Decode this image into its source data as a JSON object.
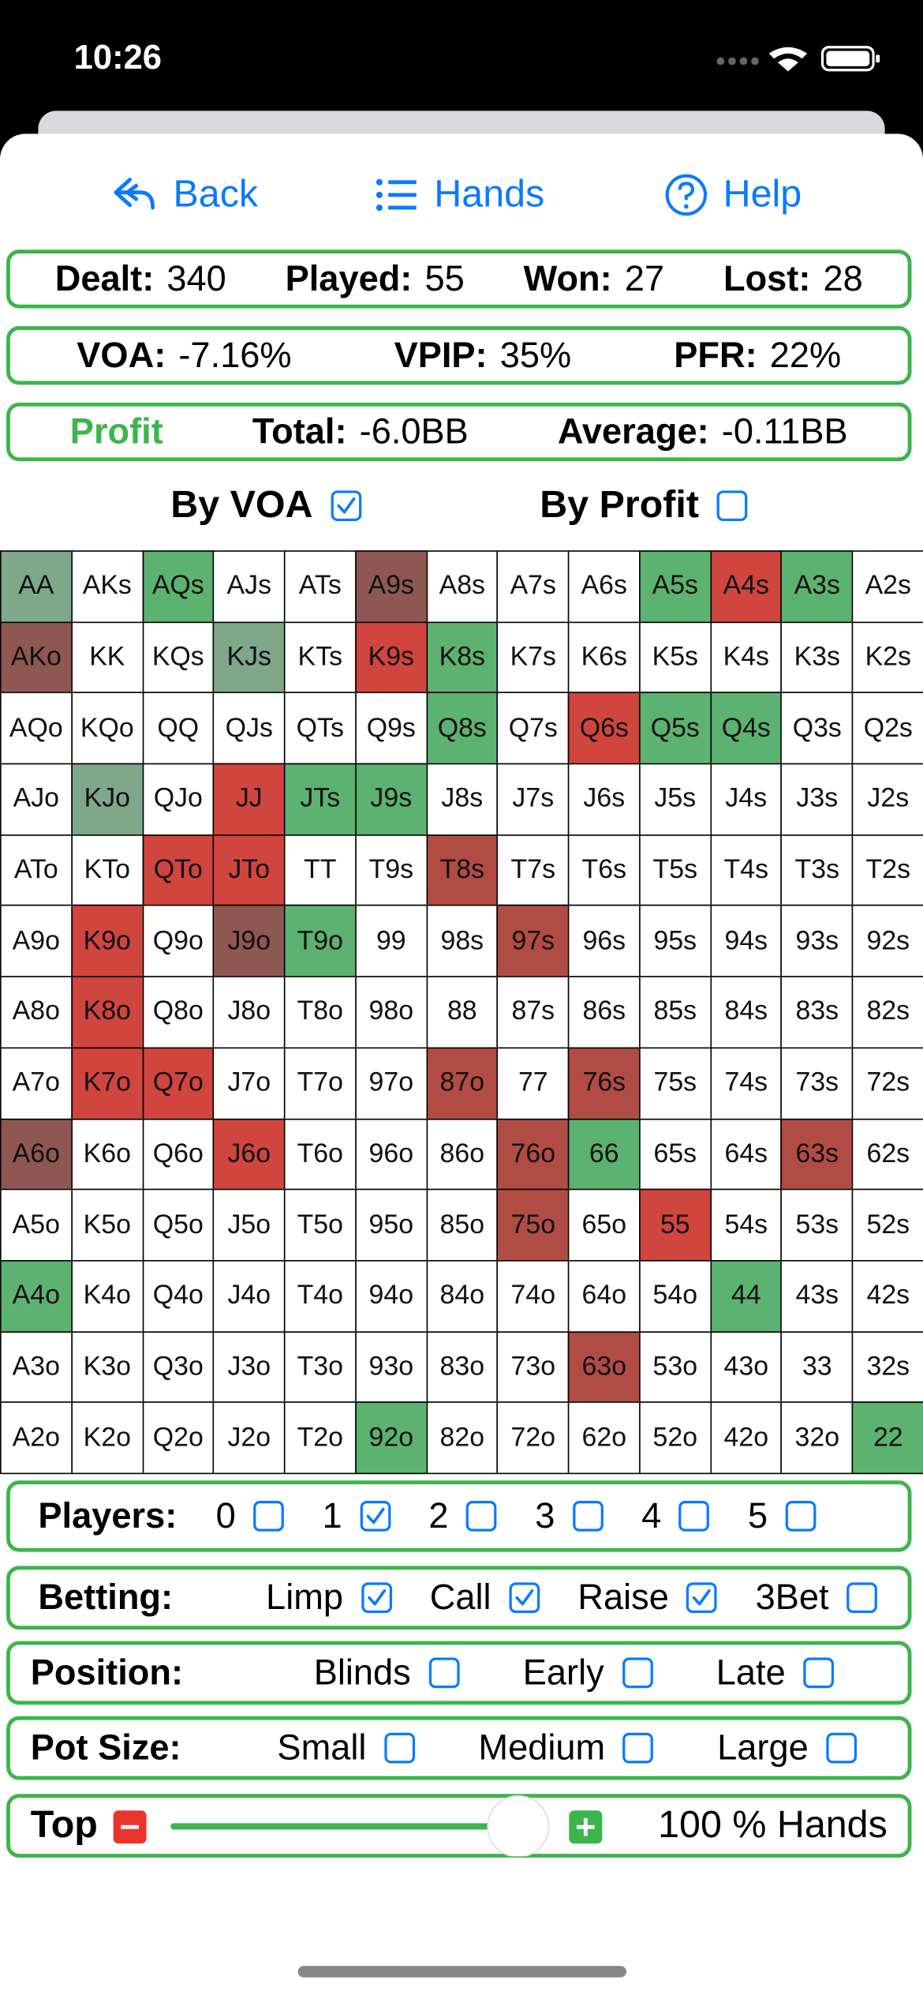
{
  "status": {
    "time": "10:26"
  },
  "nav": [
    "Back",
    "Hands",
    "Help"
  ],
  "stats": [
    [
      {
        "label": "Dealt:",
        "value": "340"
      },
      {
        "label": "Played:",
        "value": "55"
      },
      {
        "label": "Won:",
        "value": "27"
      },
      {
        "label": "Lost:",
        "value": "28"
      }
    ],
    [
      {
        "label": "VOA:",
        "value": "-7.16%"
      },
      {
        "label": "VPIP:",
        "value": "35%"
      },
      {
        "label": "PFR:",
        "value": "22%"
      }
    ],
    [
      {
        "label": "Total:",
        "value": "-6.0BB"
      },
      {
        "label": "Average:",
        "value": "-0.11BB"
      }
    ]
  ],
  "profit_label": "Profit",
  "sort": [
    {
      "label": "By VOA",
      "checked": true
    },
    {
      "label": "By Profit",
      "checked": false
    }
  ],
  "grid": {
    "rows": [
      [
        "AA",
        "AKs",
        "AQs",
        "AJs",
        "ATs",
        "A9s",
        "A8s",
        "A7s",
        "A6s",
        "A5s",
        "A4s",
        "A3s",
        "A2s"
      ],
      [
        "AKo",
        "KK",
        "KQs",
        "KJs",
        "KTs",
        "K9s",
        "K8s",
        "K7s",
        "K6s",
        "K5s",
        "K4s",
        "K3s",
        "K2s"
      ],
      [
        "AQo",
        "KQo",
        "QQ",
        "QJs",
        "QTs",
        "Q9s",
        "Q8s",
        "Q7s",
        "Q6s",
        "Q5s",
        "Q4s",
        "Q3s",
        "Q2s"
      ],
      [
        "AJo",
        "KJo",
        "QJo",
        "JJ",
        "JTs",
        "J9s",
        "J8s",
        "J7s",
        "J6s",
        "J5s",
        "J4s",
        "J3s",
        "J2s"
      ],
      [
        "ATo",
        "KTo",
        "QTo",
        "JTo",
        "TT",
        "T9s",
        "T8s",
        "T7s",
        "T6s",
        "T5s",
        "T4s",
        "T3s",
        "T2s"
      ],
      [
        "A9o",
        "K9o",
        "Q9o",
        "J9o",
        "T9o",
        "99",
        "98s",
        "97s",
        "96s",
        "95s",
        "94s",
        "93s",
        "92s"
      ],
      [
        "A8o",
        "K8o",
        "Q8o",
        "J8o",
        "T8o",
        "98o",
        "88",
        "87s",
        "86s",
        "85s",
        "84s",
        "83s",
        "82s"
      ],
      [
        "A7o",
        "K7o",
        "Q7o",
        "J7o",
        "T7o",
        "97o",
        "87o",
        "77",
        "76s",
        "75s",
        "74s",
        "73s",
        "72s"
      ],
      [
        "A6o",
        "K6o",
        "Q6o",
        "J6o",
        "T6o",
        "96o",
        "86o",
        "76o",
        "66",
        "65s",
        "64s",
        "63s",
        "62s"
      ],
      [
        "A5o",
        "K5o",
        "Q5o",
        "J5o",
        "T5o",
        "95o",
        "85o",
        "75o",
        "65o",
        "55",
        "54s",
        "53s",
        "52s"
      ],
      [
        "A4o",
        "K4o",
        "Q4o",
        "J4o",
        "T4o",
        "94o",
        "84o",
        "74o",
        "64o",
        "54o",
        "44",
        "43s",
        "42s"
      ],
      [
        "A3o",
        "K3o",
        "Q3o",
        "J3o",
        "T3o",
        "93o",
        "83o",
        "73o",
        "63o",
        "53o",
        "43o",
        "33",
        "32s"
      ],
      [
        "A2o",
        "K2o",
        "Q2o",
        "J2o",
        "T2o",
        "92o",
        "82o",
        "72o",
        "62o",
        "52o",
        "42o",
        "32o",
        "22"
      ]
    ],
    "colors": [
      [
        "#7fa88a",
        null,
        "#5cb270",
        null,
        null,
        "#8f5752",
        null,
        null,
        null,
        "#5cb270",
        "#d0453d",
        "#5cb270",
        null
      ],
      [
        "#8f5752",
        null,
        null,
        "#7fa88a",
        null,
        "#d0453d",
        "#5cb270",
        null,
        null,
        null,
        null,
        null,
        null
      ],
      [
        null,
        null,
        null,
        null,
        null,
        null,
        "#5cb270",
        null,
        "#d0453d",
        "#5cb270",
        "#5cb270",
        null,
        null
      ],
      [
        null,
        "#7fa88a",
        null,
        "#d0453d",
        "#5cb270",
        "#5cb270",
        null,
        null,
        null,
        null,
        null,
        null,
        null
      ],
      [
        null,
        null,
        "#d0453d",
        "#d0453d",
        null,
        null,
        "#b14c45",
        null,
        null,
        null,
        null,
        null,
        null
      ],
      [
        null,
        "#d0453d",
        null,
        "#8f5752",
        "#5cb270",
        null,
        null,
        "#b14c45",
        null,
        null,
        null,
        null,
        null
      ],
      [
        null,
        "#d0453d",
        null,
        null,
        null,
        null,
        null,
        null,
        null,
        null,
        null,
        null,
        null
      ],
      [
        null,
        "#d0453d",
        "#d0453d",
        null,
        null,
        null,
        "#b14c45",
        null,
        "#b14c45",
        null,
        null,
        null,
        null
      ],
      [
        "#8f5752",
        null,
        null,
        "#d0453d",
        null,
        null,
        null,
        "#b14c45",
        "#5cb270",
        null,
        null,
        "#b14c45",
        null
      ],
      [
        null,
        null,
        null,
        null,
        null,
        null,
        null,
        "#b14c45",
        null,
        "#d0453d",
        null,
        null,
        null
      ],
      [
        "#5cb270",
        null,
        null,
        null,
        null,
        null,
        null,
        null,
        null,
        null,
        "#5cb270",
        null,
        null
      ],
      [
        null,
        null,
        null,
        null,
        null,
        null,
        null,
        null,
        "#b14c45",
        null,
        null,
        null,
        null
      ],
      [
        null,
        null,
        null,
        null,
        null,
        "#5cb270",
        null,
        null,
        null,
        null,
        null,
        null,
        "#5cb270"
      ]
    ]
  },
  "filters": [
    {
      "label": "Players:",
      "options": [
        {
          "label": "0",
          "checked": false
        },
        {
          "label": "1",
          "checked": true
        },
        {
          "label": "2",
          "checked": false
        },
        {
          "label": "3",
          "checked": false
        },
        {
          "label": "4",
          "checked": false
        },
        {
          "label": "5",
          "checked": false
        }
      ]
    },
    {
      "label": "Betting:",
      "options": [
        {
          "label": "Limp",
          "checked": true
        },
        {
          "label": "Call",
          "checked": true
        },
        {
          "label": "Raise",
          "checked": true
        },
        {
          "label": "3Bet",
          "checked": false
        }
      ]
    },
    {
      "label": "Position:",
      "options": [
        {
          "label": "Blinds",
          "checked": false
        },
        {
          "label": "Early",
          "checked": false
        },
        {
          "label": "Late",
          "checked": false
        }
      ]
    },
    {
      "label": "Pot Size:",
      "options": [
        {
          "label": "Small",
          "checked": false
        },
        {
          "label": "Medium",
          "checked": false
        },
        {
          "label": "Large",
          "checked": false
        }
      ]
    }
  ],
  "top": {
    "label": "Top",
    "value_text": "100 % Hands"
  }
}
